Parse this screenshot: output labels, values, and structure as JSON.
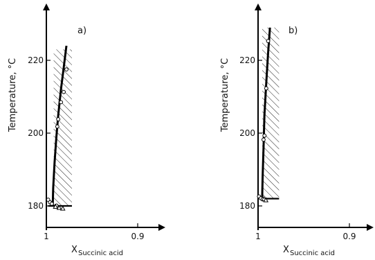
{
  "chart_data": [
    {
      "type": "line",
      "panel_label": "a)",
      "ylabel": "Temperature, °C",
      "xlabel_main": "X",
      "xlabel_sub": "Succinic acid",
      "x_ticks": [
        "1",
        "0.9"
      ],
      "x_tick_values": [
        1.0,
        0.9
      ],
      "y_ticks": [
        "180",
        "200",
        "220"
      ],
      "y_tick_values": [
        180,
        200,
        220
      ],
      "xlim": [
        1.0,
        0.87
      ],
      "ylim": [
        177,
        235
      ],
      "grid": false,
      "curve": {
        "x": [
          0.993,
          0.9925,
          0.991,
          0.989,
          0.987,
          0.984,
          0.981,
          0.978
        ],
        "y": [
          180,
          185,
          192,
          199,
          205,
          212,
          218,
          224
        ]
      },
      "baseline": {
        "x": [
          0.998,
          0.972
        ],
        "y": [
          180,
          180
        ]
      },
      "circle_points": {
        "x": [
          0.998,
          0.996,
          0.994,
          0.989,
          0.988,
          0.987,
          0.984,
          0.981,
          0.978
        ],
        "y": [
          181.7,
          181.0,
          180.6,
          180.1,
          201.8,
          203.8,
          208.5,
          211.3,
          217.5
        ]
      },
      "triangle_points": {
        "x": [
          0.99,
          0.986,
          0.982
        ],
        "y": [
          179.8,
          179.5,
          179.3
        ]
      },
      "hatched_region": {
        "x": [
          0.992,
          0.972
        ],
        "y": [
          180,
          223
        ]
      }
    },
    {
      "type": "line",
      "panel_label": "b)",
      "ylabel": "Temperature, °C",
      "xlabel_main": "X",
      "xlabel_sub": "Succinic acid",
      "x_ticks": [
        "1",
        "0.9"
      ],
      "x_tick_values": [
        1.0,
        0.9
      ],
      "y_ticks": [
        "180",
        "200",
        "220"
      ],
      "y_tick_values": [
        180,
        200,
        220
      ],
      "xlim": [
        1.0,
        0.87
      ],
      "ylim": [
        177,
        235
      ],
      "grid": false,
      "curve": {
        "x": [
          0.9955,
          0.995,
          0.994,
          0.993,
          0.991,
          0.989,
          0.987
        ],
        "y": [
          182,
          188,
          196,
          205,
          214,
          222,
          229
        ]
      },
      "baseline": {
        "x": [
          0.998,
          0.977
        ],
        "y": [
          182,
          182
        ]
      },
      "circle_points": {
        "x": [
          0.999,
          0.997,
          0.995,
          0.994,
          0.993,
          0.991,
          0.989
        ],
        "y": [
          182.6,
          182.1,
          181.8,
          198.2,
          199.3,
          212.3,
          225.3
        ]
      },
      "triangle_points": {
        "x": [
          0.9935,
          0.9915
        ],
        "y": [
          181.9,
          181.6
        ]
      },
      "hatched_region": {
        "x": [
          0.9955,
          0.977
        ],
        "y": [
          182,
          229
        ]
      }
    }
  ]
}
